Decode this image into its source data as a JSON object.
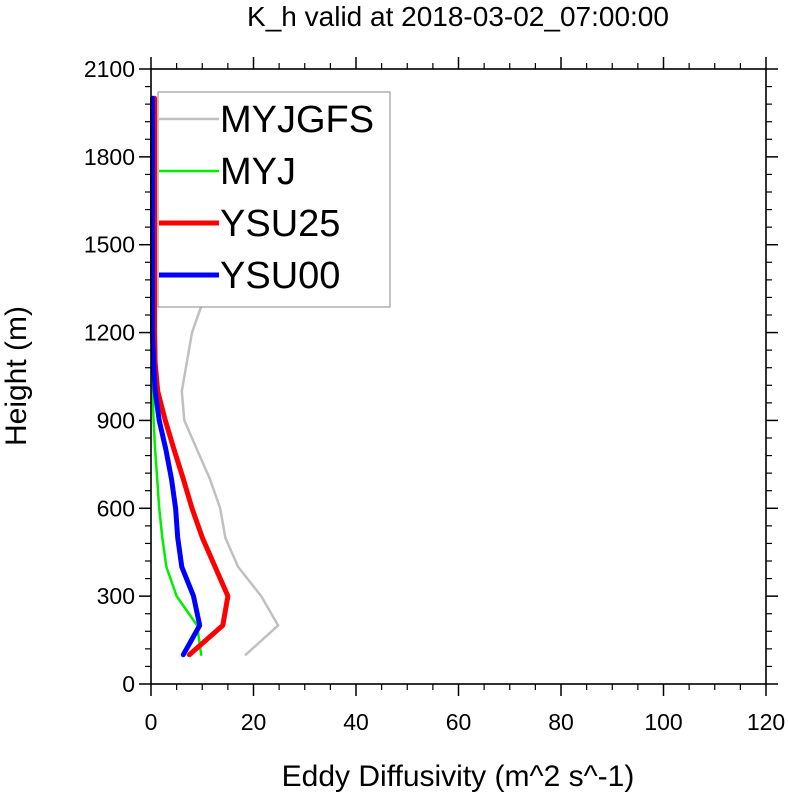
{
  "chart_data": {
    "type": "line",
    "title": "K_h valid at 2018-03-02_07:00:00",
    "xlabel": "Eddy Diffusivity (m^2 s^-1)",
    "ylabel": "Height (m)",
    "xlim": [
      0,
      120
    ],
    "ylim": [
      0,
      2100
    ],
    "xticks": [
      "0",
      "20",
      "40",
      "60",
      "80",
      "100",
      "120"
    ],
    "yticks": [
      "0",
      "300",
      "600",
      "900",
      "1200",
      "1500",
      "1800",
      "2100"
    ],
    "legend_position": "top-left",
    "series": [
      {
        "name": "MYJGFS",
        "color": "#c0c0c0",
        "width": "thin",
        "points": [
          [
            18.5,
            100
          ],
          [
            24.8,
            200
          ],
          [
            21.5,
            300
          ],
          [
            17.0,
            400
          ],
          [
            14.5,
            500
          ],
          [
            13.5,
            600
          ],
          [
            11.5,
            700
          ],
          [
            9.0,
            800
          ],
          [
            6.5,
            900
          ],
          [
            6.0,
            1000
          ],
          [
            7.0,
            1100
          ],
          [
            8.0,
            1200
          ],
          [
            10.0,
            1300
          ],
          [
            11.5,
            1400
          ],
          [
            12.5,
            1500
          ],
          [
            13.5,
            1600
          ],
          [
            14.5,
            1700
          ],
          [
            15.5,
            1800
          ],
          [
            17.0,
            1900
          ],
          [
            17.8,
            2000
          ]
        ]
      },
      {
        "name": "MYJ",
        "color": "#00ee00",
        "width": "thin",
        "points": [
          [
            9.8,
            100
          ],
          [
            9.0,
            200
          ],
          [
            5.0,
            300
          ],
          [
            3.0,
            400
          ],
          [
            2.2,
            500
          ],
          [
            1.6,
            600
          ],
          [
            1.2,
            700
          ],
          [
            0.8,
            800
          ],
          [
            0.5,
            900
          ],
          [
            0.3,
            1000
          ],
          [
            0.2,
            1100
          ],
          [
            0.1,
            1200
          ],
          [
            0.1,
            1300
          ],
          [
            0.1,
            1400
          ],
          [
            0.1,
            1500
          ],
          [
            0.1,
            1600
          ],
          [
            0.1,
            1700
          ],
          [
            0.1,
            1800
          ],
          [
            0.1,
            1900
          ],
          [
            0.1,
            2000
          ]
        ]
      },
      {
        "name": "YSU25",
        "color": "#ff0000",
        "width": "thick",
        "points": [
          [
            7.5,
            100
          ],
          [
            14.0,
            200
          ],
          [
            15.0,
            300
          ],
          [
            12.5,
            400
          ],
          [
            10.0,
            500
          ],
          [
            8.0,
            600
          ],
          [
            6.3,
            700
          ],
          [
            4.5,
            800
          ],
          [
            2.8,
            900
          ],
          [
            1.3,
            1000
          ],
          [
            0.8,
            1100
          ],
          [
            0.7,
            1200
          ],
          [
            0.7,
            1300
          ],
          [
            0.7,
            1400
          ],
          [
            0.7,
            1500
          ],
          [
            0.7,
            1600
          ],
          [
            0.7,
            1700
          ],
          [
            0.7,
            1800
          ],
          [
            0.7,
            1900
          ],
          [
            0.7,
            2000
          ]
        ]
      },
      {
        "name": "YSU00",
        "color": "#0000ff",
        "width": "thick",
        "points": [
          [
            6.3,
            100
          ],
          [
            9.5,
            200
          ],
          [
            8.3,
            300
          ],
          [
            6.0,
            400
          ],
          [
            5.2,
            500
          ],
          [
            4.8,
            600
          ],
          [
            4.0,
            700
          ],
          [
            2.9,
            800
          ],
          [
            1.6,
            900
          ],
          [
            0.8,
            1000
          ],
          [
            0.5,
            1100
          ],
          [
            0.3,
            1200
          ],
          [
            0.3,
            1300
          ],
          [
            0.3,
            1400
          ],
          [
            0.3,
            1500
          ],
          [
            0.3,
            1600
          ],
          [
            0.3,
            1700
          ],
          [
            0.3,
            1800
          ],
          [
            0.3,
            1900
          ],
          [
            0.3,
            2000
          ]
        ]
      }
    ]
  }
}
